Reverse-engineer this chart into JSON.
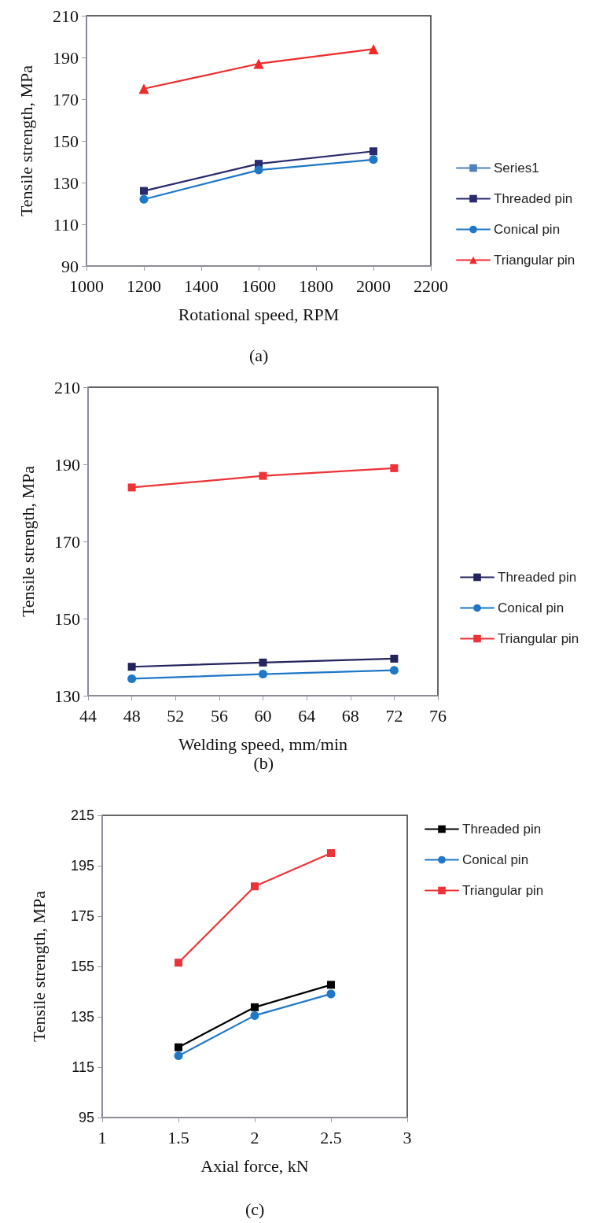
{
  "chart_data": [
    {
      "type": "line",
      "xlabel": "Rotational speed, RPM",
      "ylabel": "Tensile strength, MPa",
      "annotations": [
        "(a)"
      ],
      "x": [
        1200,
        1600,
        2000
      ],
      "xlim": [
        1000,
        2200
      ],
      "xticks": [
        1000,
        1200,
        1400,
        1600,
        1800,
        2000,
        2200
      ],
      "ylim": [
        90,
        210
      ],
      "yticks": [
        90,
        110,
        130,
        150,
        170,
        190,
        210
      ],
      "grid": false,
      "legend": "right",
      "series": [
        {
          "name": "Series1",
          "color": "#4f81bd",
          "marker": "square",
          "values": [
            null,
            null,
            null
          ]
        },
        {
          "name": "Threaded pin",
          "color": "#2a2a6e",
          "marker": "square",
          "values": [
            126,
            139,
            145
          ]
        },
        {
          "name": "Conical pin",
          "color": "#1f77c8",
          "marker": "circle",
          "values": [
            122,
            136,
            141
          ]
        },
        {
          "name": "Triangular pin",
          "color": "#ee2b2b",
          "marker": "triangle",
          "values": [
            175,
            187,
            194
          ]
        }
      ]
    },
    {
      "type": "line",
      "xlabel": "Welding speed, mm/min",
      "ylabel": "Tensile strength, MPa",
      "annotations": [
        "(b)"
      ],
      "x": [
        48,
        60,
        72
      ],
      "xlim": [
        44,
        76
      ],
      "xticks": [
        44,
        48,
        52,
        56,
        60,
        64,
        68,
        72,
        76
      ],
      "ylim": [
        130,
        210
      ],
      "yticks": [
        130,
        150,
        170,
        190,
        210
      ],
      "grid": false,
      "legend": "right",
      "series": [
        {
          "name": "Threaded pin",
          "color": "#23235e",
          "marker": "square",
          "values": [
            137.5,
            138.6,
            139.6
          ]
        },
        {
          "name": "Conical pin",
          "color": "#1f77c8",
          "marker": "circle",
          "values": [
            134.4,
            135.6,
            136.6
          ]
        },
        {
          "name": "Triangular pin",
          "color": "#ee3338",
          "marker": "square",
          "values": [
            184,
            187,
            189
          ]
        }
      ]
    },
    {
      "type": "line",
      "xlabel": "Axial force, kN",
      "ylabel": "Tensile strength, MPa",
      "annotations": [
        "(c)"
      ],
      "x": [
        1.5,
        2,
        2.5
      ],
      "xlim": [
        1,
        3
      ],
      "xticks": [
        1,
        1.5,
        2,
        2.5,
        3
      ],
      "ylim": [
        95,
        215
      ],
      "yticks": [
        95,
        115,
        135,
        155,
        175,
        195,
        215
      ],
      "grid": false,
      "legend": "right",
      "series": [
        {
          "name": "Threaded pin",
          "color": "#000000",
          "marker": "square",
          "values": [
            122.9,
            138.8,
            147.7
          ]
        },
        {
          "name": "Conical pin",
          "color": "#1f77c8",
          "marker": "circle",
          "values": [
            119.5,
            135.5,
            144.1
          ]
        },
        {
          "name": "Triangular pin",
          "color": "#ee3338",
          "marker": "square",
          "values": [
            156.5,
            186.8,
            200
          ]
        }
      ]
    }
  ]
}
